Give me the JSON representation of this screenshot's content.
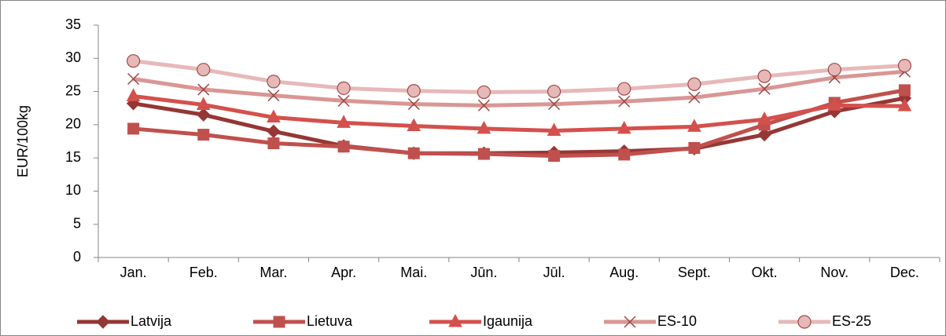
{
  "chart_data": {
    "type": "line",
    "ylabel": "EUR/100kg",
    "categories": [
      "Jan.",
      "Feb.",
      "Mar.",
      "Apr.",
      "Mai.",
      "Jūn.",
      "Jūl.",
      "Aug.",
      "Sept.",
      "Okt.",
      "Nov.",
      "Dec."
    ],
    "series": [
      {
        "name": "Latvija",
        "color": "#953735",
        "marker": "diamond",
        "values": [
          23.2,
          21.5,
          19,
          16.8,
          15.7,
          15.7,
          15.8,
          16,
          16.4,
          18.5,
          22,
          24
        ]
      },
      {
        "name": "Lietuva",
        "color": "#c0504d",
        "marker": "square",
        "values": [
          19.4,
          18.5,
          17.2,
          16.7,
          15.7,
          15.6,
          15.3,
          15.5,
          16.5,
          20,
          23.3,
          25.2
        ]
      },
      {
        "name": "Igaunija",
        "color": "#d4504c",
        "marker": "triangle",
        "values": [
          24.3,
          23,
          21.1,
          20.3,
          19.8,
          19.4,
          19.1,
          19.4,
          19.7,
          20.8,
          22.9,
          22.8
        ]
      },
      {
        "name": "ES-10",
        "color": "#d99694",
        "marker": "x",
        "values": [
          26.9,
          25.3,
          24.4,
          23.6,
          23.1,
          22.9,
          23.1,
          23.5,
          24.1,
          25.4,
          27.1,
          28
        ]
      },
      {
        "name": "ES-25",
        "color": "#e6b9b8",
        "marker": "circle",
        "values": [
          29.6,
          28.3,
          26.5,
          25.5,
          25.1,
          24.9,
          25,
          25.4,
          26.1,
          27.3,
          28.3,
          28.9
        ]
      }
    ],
    "ylim": [
      0,
      35
    ],
    "yticks": [
      0,
      5,
      10,
      15,
      20,
      25,
      30,
      35
    ],
    "grid": false,
    "legend": "bottom"
  }
}
